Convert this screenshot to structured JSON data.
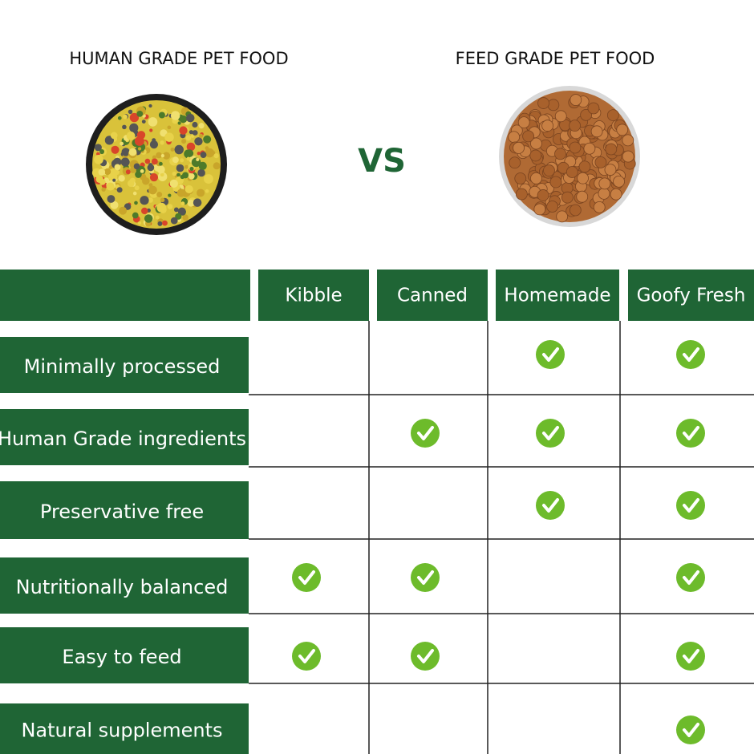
{
  "header": {
    "left_title": "HUMAN GRADE PET FOOD",
    "vs": "VS",
    "right_title": "FEED GRADE PET FOOD"
  },
  "table": {
    "columns": [
      "Kibble",
      "Canned",
      "Homemade",
      "Goofy Fresh"
    ],
    "rows": [
      {
        "label": "Minimally processed",
        "checks": [
          false,
          false,
          true,
          true
        ]
      },
      {
        "label": "Human Grade ingredients",
        "checks": [
          false,
          true,
          true,
          true
        ]
      },
      {
        "label": "Preservative free",
        "checks": [
          false,
          false,
          true,
          true
        ]
      },
      {
        "label": "Nutritionally balanced",
        "checks": [
          true,
          true,
          false,
          true
        ]
      },
      {
        "label": "Easy to feed",
        "checks": [
          true,
          true,
          false,
          true
        ]
      },
      {
        "label": "Natural supplements",
        "checks": [
          false,
          false,
          false,
          true
        ]
      }
    ]
  }
}
